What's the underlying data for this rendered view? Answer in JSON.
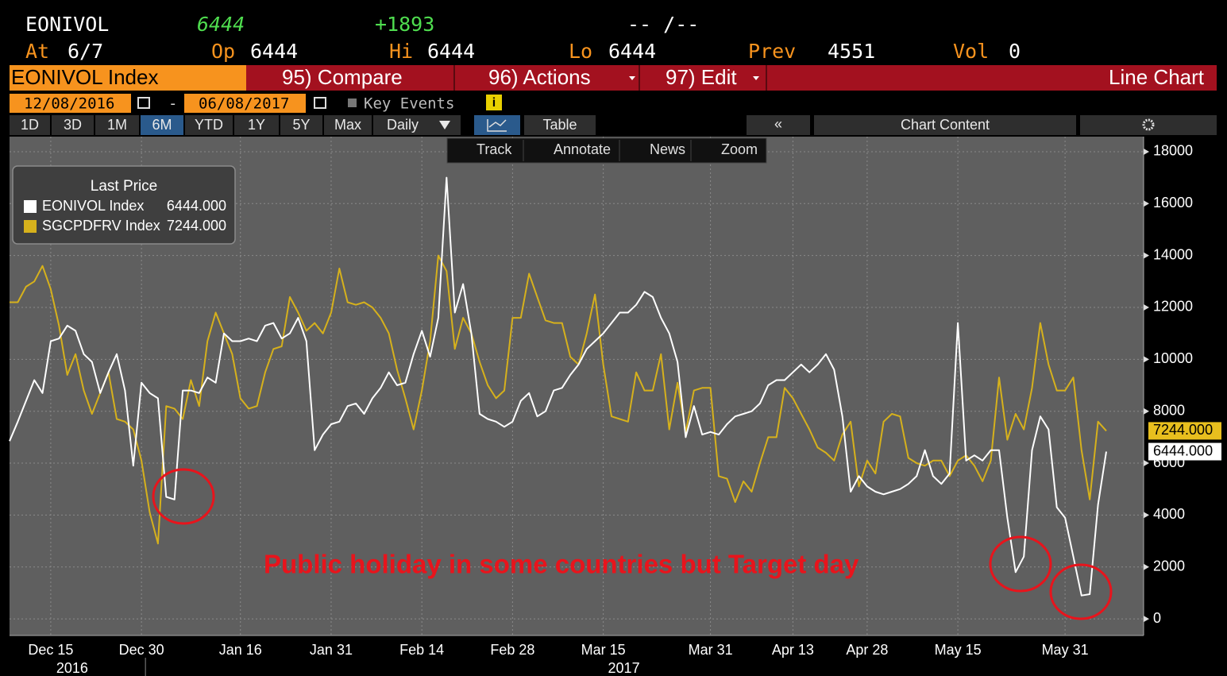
{
  "header": {
    "ticker": "EONIVOL",
    "last": "6444",
    "change": "+1893",
    "bid_ask": "-- /--",
    "at_label": "At",
    "at": "6/7",
    "open_label": "Op",
    "open": "6444",
    "high_label": "Hi",
    "high": "6444",
    "low_label": "Lo",
    "low": "6444",
    "prev_label": "Prev",
    "prev": "4551",
    "vol_label": "Vol",
    "vol": "0"
  },
  "tabs": {
    "security": "EONIVOL Index",
    "compare": "95) Compare",
    "actions": "96) Actions",
    "edit": "97) Edit",
    "view": "Line Chart"
  },
  "range": {
    "start": "12/08/2016",
    "separator": "-",
    "end": "06/08/2017",
    "key_events": "Key Events",
    "info": "i"
  },
  "periods": [
    "1D",
    "3D",
    "1M",
    "6M",
    "YTD",
    "1Y",
    "5Y",
    "Max"
  ],
  "frequency": "Daily",
  "table": "Table",
  "collapse": "«",
  "chart_content": "Chart Content",
  "tools": [
    "Track",
    "Annotate",
    "News",
    "Zoom"
  ],
  "chart_data": {
    "type": "line",
    "legend_title": "Last Price",
    "annotation": "Public holiday in some countries but Target day",
    "x_year_labels": [
      "2016",
      "2017"
    ],
    "categories": [
      null,
      null,
      null,
      null,
      null,
      "Dec 15",
      null,
      null,
      null,
      null,
      null,
      null,
      null,
      null,
      null,
      null,
      "Dec 30",
      null,
      null,
      null,
      null,
      null,
      null,
      null,
      null,
      null,
      null,
      null,
      "Jan 16",
      null,
      null,
      null,
      null,
      null,
      null,
      null,
      null,
      null,
      null,
      "Jan 31",
      null,
      null,
      null,
      null,
      null,
      null,
      null,
      null,
      null,
      null,
      "Feb 14",
      null,
      null,
      null,
      null,
      null,
      null,
      null,
      null,
      null,
      null,
      "Feb 28",
      null,
      null,
      null,
      null,
      null,
      null,
      null,
      null,
      null,
      null,
      "Mar 15",
      null,
      null,
      null,
      null,
      null,
      null,
      null,
      null,
      null,
      null,
      null,
      null,
      "Mar 31",
      null,
      null,
      null,
      null,
      null,
      null,
      null,
      null,
      null,
      "Apr 13",
      null,
      null,
      null,
      null,
      null,
      null,
      null,
      null,
      "Apr 28",
      null,
      null,
      null,
      null,
      null,
      null,
      null,
      null,
      null,
      null,
      "May 15",
      null,
      null,
      null,
      null,
      null,
      null,
      null,
      null,
      null,
      null,
      null,
      null,
      "May 31",
      null,
      null,
      null,
      null,
      null
    ],
    "series": [
      {
        "name": "EONIVOL Index",
        "color": "#ffffff",
        "values": [
          6850,
          7600,
          8400,
          9200,
          8700,
          10700,
          10800,
          11300,
          11100,
          10200,
          9900,
          8700,
          9500,
          10200,
          8800,
          5900,
          9100,
          8700,
          8500,
          4700,
          4600,
          8800,
          8800,
          8700,
          9300,
          9100,
          11000,
          10700,
          10700,
          10800,
          10700,
          11300,
          11400,
          10800,
          11000,
          11600,
          10700,
          6500,
          7100,
          7500,
          7600,
          8200,
          8300,
          7900,
          8500,
          8900,
          9500,
          9000,
          9100,
          10200,
          11100,
          10100,
          11600,
          17000,
          11800,
          12900,
          11000,
          7900,
          7700,
          7600,
          7400,
          7600,
          8400,
          8700,
          7800,
          8000,
          8800,
          8900,
          9400,
          9800,
          10400,
          10700,
          11000,
          11400,
          11800,
          11800,
          12100,
          12600,
          12400,
          11600,
          11000,
          9900,
          7000,
          8200,
          7100,
          7200,
          7100,
          7500,
          7800,
          7900,
          8000,
          8300,
          9000,
          9200,
          9200,
          9500,
          9800,
          9500,
          9800,
          10200,
          9600,
          7800,
          4900,
          5500,
          5100,
          4900,
          4800,
          4900,
          5000,
          5200,
          5500,
          6500,
          5500,
          5200,
          5600,
          11400,
          6100,
          6300,
          6100,
          6500,
          6500,
          3900,
          1800,
          2400,
          6500,
          7800,
          7300,
          4300,
          3900,
          2400,
          900,
          950,
          4400,
          6444
        ],
        "value_labels": [
          null,
          null,
          null,
          null,
          null,
          null,
          null,
          null,
          null,
          null,
          null,
          null,
          null,
          null,
          null,
          null,
          null,
          null,
          null,
          null,
          null,
          null,
          null,
          null,
          null,
          null,
          null,
          null,
          null,
          null,
          null,
          null,
          null,
          null,
          null,
          null,
          null,
          null,
          null,
          null,
          null,
          null,
          null,
          null,
          null,
          null,
          null,
          null,
          null,
          null,
          null,
          null,
          null,
          null,
          null,
          null,
          null,
          null,
          null,
          null,
          null,
          null,
          null,
          null,
          null,
          null,
          null,
          null,
          null,
          null,
          null,
          null,
          null,
          null,
          null,
          null,
          null,
          null,
          null,
          null,
          null,
          null,
          null,
          null,
          null,
          null,
          null,
          null,
          null,
          null,
          null,
          null,
          null,
          null,
          null,
          null,
          null,
          null,
          null,
          null,
          null,
          null,
          null,
          null,
          null,
          null,
          null,
          null,
          null,
          null,
          null,
          null,
          null,
          null,
          null,
          null,
          null,
          null,
          null,
          null,
          null,
          null,
          null,
          null,
          null,
          null,
          null,
          null,
          null,
          null,
          null,
          null,
          null,
          "6444.000"
        ]
      },
      {
        "name": "SGCPDFRV Index",
        "color": "#d6b11c",
        "values": [
          12200,
          12200,
          12800,
          13000,
          13600,
          12700,
          11300,
          9400,
          10200,
          8800,
          7900,
          8700,
          9500,
          7700,
          7600,
          7300,
          6100,
          4100,
          2900,
          8200,
          8100,
          7700,
          9200,
          8200,
          10700,
          11800,
          11000,
          10200,
          8500,
          8100,
          8200,
          9500,
          10400,
          10500,
          12400,
          11800,
          11100,
          11400,
          11000,
          11800,
          13500,
          12200,
          12100,
          12200,
          12000,
          11600,
          11000,
          9600,
          8500,
          7300,
          8800,
          10700,
          14000,
          13400,
          10400,
          11600,
          11000,
          9900,
          9000,
          8500,
          8800,
          11600,
          11600,
          13300,
          12400,
          11500,
          11400,
          11400,
          10100,
          9800,
          11000,
          12500,
          9800,
          7800,
          7700,
          7600,
          9500,
          8800,
          8800,
          10200,
          7300,
          9100,
          7200,
          8800,
          8900,
          8900,
          5500,
          5400,
          4500,
          5300,
          4900,
          6000,
          7000,
          7000,
          8900,
          8500,
          7900,
          7300,
          6600,
          6400,
          6100,
          7100,
          7600,
          5100,
          6100,
          5600,
          7600,
          7900,
          7800,
          6200,
          6000,
          5900,
          6100,
          6100,
          5500,
          6100,
          6300,
          5900,
          5300,
          6100,
          9300,
          6900,
          7900,
          7300,
          8900,
          11400,
          9800,
          8800,
          8800,
          9300,
          6500,
          4600,
          7600,
          7244
        ],
        "value_labels": [
          null,
          null,
          null,
          null,
          null,
          null,
          null,
          null,
          null,
          null,
          null,
          null,
          null,
          null,
          null,
          null,
          null,
          null,
          null,
          null,
          null,
          null,
          null,
          null,
          null,
          null,
          null,
          null,
          null,
          null,
          null,
          null,
          null,
          null,
          null,
          null,
          null,
          null,
          null,
          null,
          null,
          null,
          null,
          null,
          null,
          null,
          null,
          null,
          null,
          null,
          null,
          null,
          null,
          null,
          null,
          null,
          null,
          null,
          null,
          null,
          null,
          null,
          null,
          null,
          null,
          null,
          null,
          null,
          null,
          null,
          null,
          null,
          null,
          null,
          null,
          null,
          null,
          null,
          null,
          null,
          null,
          null,
          null,
          null,
          null,
          null,
          null,
          null,
          null,
          null,
          null,
          null,
          null,
          null,
          null,
          null,
          null,
          null,
          null,
          null,
          null,
          null,
          null,
          null,
          null,
          null,
          null,
          null,
          null,
          null,
          null,
          null,
          null,
          null,
          null,
          null,
          null,
          null,
          null,
          null,
          null,
          null,
          null,
          null,
          null,
          null,
          null,
          null,
          null,
          null,
          null,
          null,
          null,
          "7244.000"
        ]
      }
    ],
    "ylim": [
      -640,
      18580
    ],
    "yticks": [
      0,
      2000,
      4000,
      6000,
      8000,
      10000,
      12000,
      14000,
      16000,
      18000
    ],
    "grid": true,
    "legend": "top-left"
  }
}
